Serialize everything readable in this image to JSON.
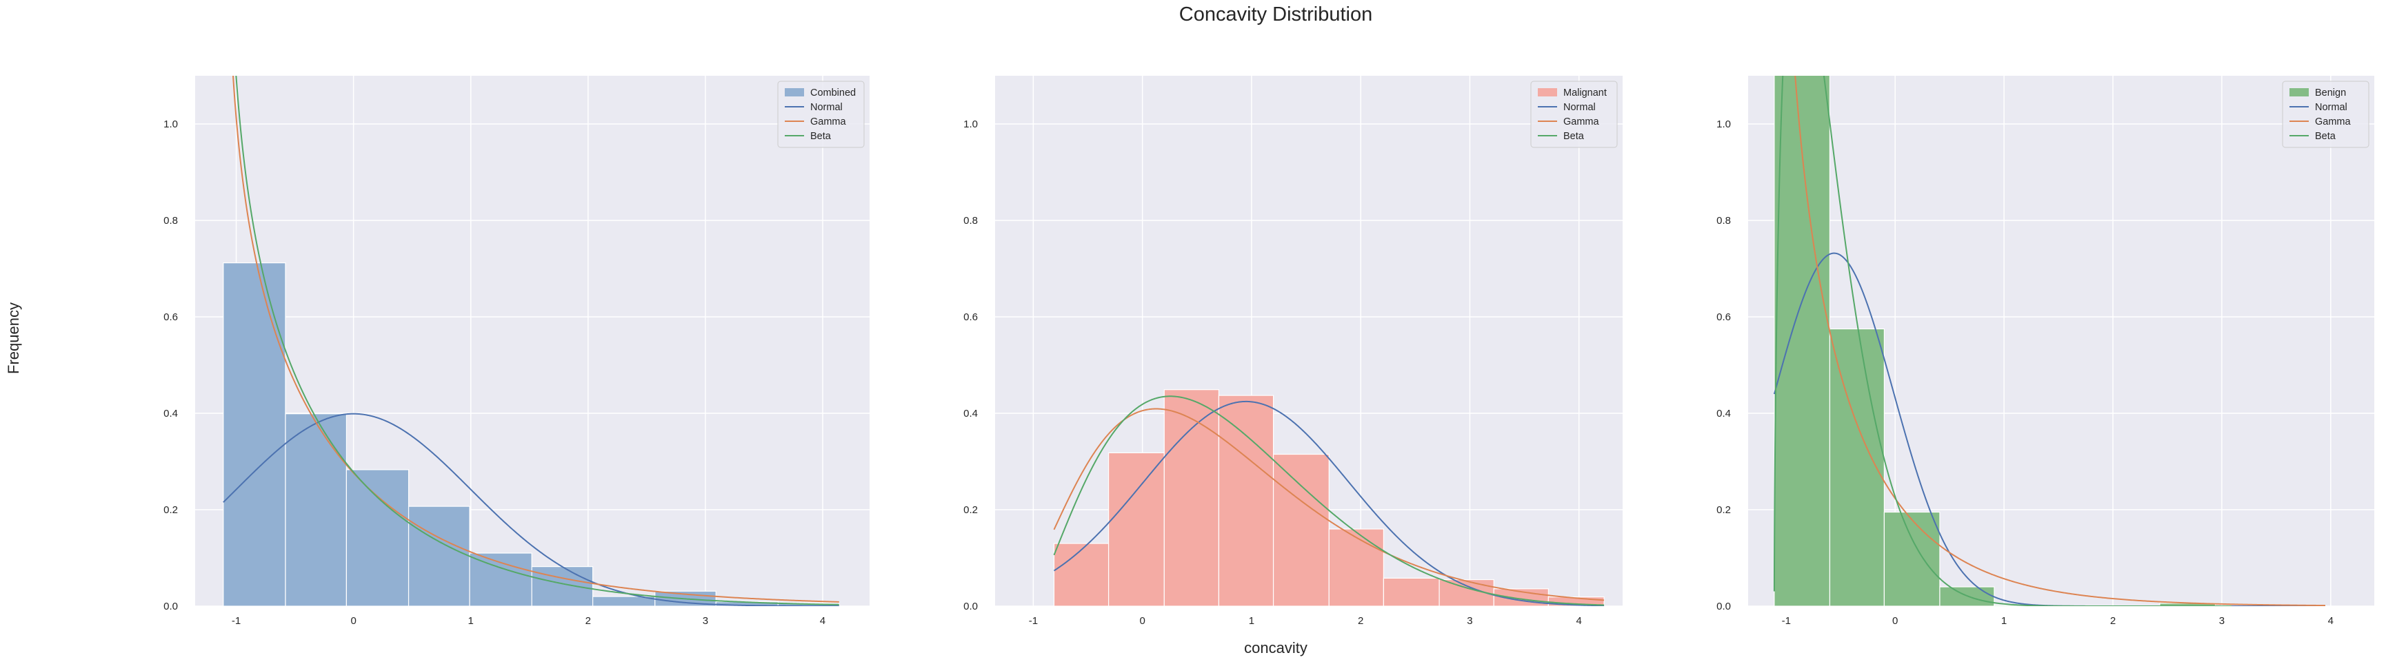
{
  "figure": {
    "title": "Concavity Distribution",
    "xlabel": "concavity",
    "ylabel": "Frequency"
  },
  "chart_data": [
    {
      "type": "bar",
      "subtype": "histogram-with-fitted-curves",
      "panel": "combined",
      "xlim": [
        -1.35,
        4.4
      ],
      "ylim": [
        0,
        1.1
      ],
      "xticks": [
        "-1",
        "0",
        "1",
        "2",
        "3",
        "4"
      ],
      "yticks": [
        "0.0",
        "0.2",
        "0.4",
        "0.6",
        "0.8",
        "1.0"
      ],
      "grid": true,
      "legend_position": "top-right",
      "histogram": {
        "name": "Combined",
        "color": "#92b0d2",
        "bin_edges": [
          -1.11,
          -0.58,
          -0.06,
          0.47,
          0.99,
          1.52,
          2.04,
          2.57,
          3.09,
          3.62,
          4.14
        ],
        "values": [
          0.712,
          0.399,
          0.283,
          0.207,
          0.11,
          0.082,
          0.02,
          0.031,
          0.009,
          0.006
        ]
      },
      "curves": [
        {
          "name": "Normal",
          "color": "#4c72b0",
          "dist": "normal",
          "params": {
            "mean": 0,
            "sd": 1
          }
        },
        {
          "name": "Gamma",
          "color": "#dd8452",
          "dist": "gamma",
          "params": {
            "shape": 0.75,
            "loc": -1.12,
            "scale": 1.35
          }
        },
        {
          "name": "Beta",
          "color": "#55a868",
          "dist": "beta",
          "params": {
            "a": 0.72,
            "b": 9.5,
            "loc": -1.12,
            "scale": 12.0
          }
        }
      ]
    },
    {
      "type": "bar",
      "subtype": "histogram-with-fitted-curves",
      "panel": "malignant",
      "xlim": [
        -1.35,
        4.4
      ],
      "ylim": [
        0,
        1.1
      ],
      "xticks": [
        "-1",
        "0",
        "1",
        "2",
        "3",
        "4"
      ],
      "yticks": [
        "0.0",
        "0.2",
        "0.4",
        "0.6",
        "0.8",
        "1.0"
      ],
      "grid": true,
      "legend_position": "top-right",
      "histogram": {
        "name": "Malignant",
        "color": "#f4aba4",
        "bin_edges": [
          -0.81,
          -0.31,
          0.2,
          0.7,
          1.2,
          1.71,
          2.21,
          2.72,
          3.22,
          3.72,
          4.23
        ],
        "values": [
          0.13,
          0.318,
          0.449,
          0.437,
          0.315,
          0.16,
          0.058,
          0.055,
          0.036,
          0.019
        ]
      },
      "curves": [
        {
          "name": "Normal",
          "color": "#4c72b0",
          "dist": "normal",
          "params": {
            "mean": 0.95,
            "sd": 0.94
          }
        },
        {
          "name": "Gamma",
          "color": "#dd8452",
          "dist": "gamma",
          "params": {
            "shape": 3.3,
            "loc": -1.3,
            "scale": 0.62
          }
        },
        {
          "name": "Beta",
          "color": "#55a868",
          "dist": "beta",
          "params": {
            "a": 2.5,
            "b": 8.0,
            "loc": -1.05,
            "scale": 7.4
          }
        }
      ]
    },
    {
      "type": "bar",
      "subtype": "histogram-with-fitted-curves",
      "panel": "benign",
      "xlim": [
        -1.35,
        4.4
      ],
      "ylim": [
        0,
        1.1
      ],
      "xticks": [
        "-1",
        "0",
        "1",
        "2",
        "3",
        "4"
      ],
      "yticks": [
        "0.0",
        "0.2",
        "0.4",
        "0.6",
        "0.8",
        "1.0"
      ],
      "grid": true,
      "legend_position": "top-right",
      "histogram": {
        "name": "Benign",
        "color": "#84bc86",
        "bin_edges": [
          -1.11,
          -0.6,
          -0.1,
          0.41,
          0.91,
          1.42,
          1.92,
          2.43,
          2.94,
          3.44,
          3.95
        ],
        "values": [
          1.16,
          0.575,
          0.195,
          0.04,
          0.002,
          0.0,
          0.0,
          0.006,
          0.0,
          0.0
        ]
      },
      "curves": [
        {
          "name": "Normal",
          "color": "#4c72b0",
          "dist": "normal",
          "params": {
            "mean": -0.56,
            "sd": 0.545
          }
        },
        {
          "name": "Gamma",
          "color": "#dd8452",
          "dist": "gamma",
          "params": {
            "shape": 0.7,
            "loc": -1.12,
            "scale": 0.85
          }
        },
        {
          "name": "Beta",
          "color": "#55a868",
          "dist": "beta",
          "params": {
            "a": 1.6,
            "b": 12.0,
            "loc": -1.11,
            "scale": 4.2
          }
        }
      ]
    }
  ]
}
